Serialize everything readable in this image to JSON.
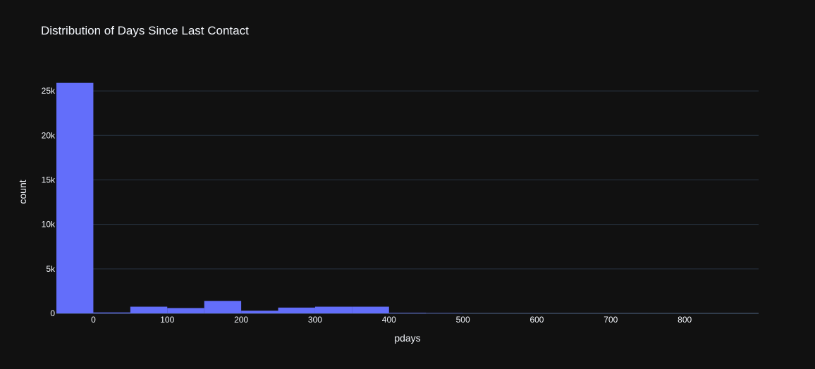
{
  "chart_data": {
    "type": "bar",
    "title": "Distribution of Days Since Last Contact",
    "xlabel": "pdays",
    "ylabel": "count",
    "bin_width": 50,
    "bins": [
      {
        "start": -50,
        "end": 0,
        "count": 25900
      },
      {
        "start": 0,
        "end": 50,
        "count": 100
      },
      {
        "start": 50,
        "end": 100,
        "count": 750
      },
      {
        "start": 100,
        "end": 150,
        "count": 600
      },
      {
        "start": 150,
        "end": 200,
        "count": 1400
      },
      {
        "start": 200,
        "end": 250,
        "count": 300
      },
      {
        "start": 250,
        "end": 300,
        "count": 650
      },
      {
        "start": 300,
        "end": 350,
        "count": 750
      },
      {
        "start": 350,
        "end": 400,
        "count": 750
      },
      {
        "start": 400,
        "end": 450,
        "count": 60
      },
      {
        "start": 450,
        "end": 500,
        "count": 40
      },
      {
        "start": 500,
        "end": 550,
        "count": 10
      },
      {
        "start": 550,
        "end": 600,
        "count": 8
      },
      {
        "start": 600,
        "end": 650,
        "count": 5
      },
      {
        "start": 650,
        "end": 700,
        "count": 5
      },
      {
        "start": 700,
        "end": 750,
        "count": 4
      },
      {
        "start": 750,
        "end": 800,
        "count": 3
      },
      {
        "start": 800,
        "end": 850,
        "count": 3
      },
      {
        "start": 850,
        "end": 900,
        "count": 2
      }
    ],
    "xlim": [
      -50,
      900
    ],
    "ylim": [
      0,
      27300
    ],
    "xticks": [
      0,
      100,
      200,
      300,
      400,
      500,
      600,
      700,
      800
    ],
    "xtick_labels": [
      "0",
      "100",
      "200",
      "300",
      "400",
      "500",
      "600",
      "700",
      "800"
    ],
    "yticks": [
      0,
      5000,
      10000,
      15000,
      20000,
      25000
    ],
    "ytick_labels": [
      "0",
      "5k",
      "10k",
      "15k",
      "20k",
      "25k"
    ],
    "grid": true,
    "colors": {
      "bar": "#636efa",
      "background": "#111111",
      "grid": "#283442",
      "text": "#f2f5fa"
    }
  }
}
